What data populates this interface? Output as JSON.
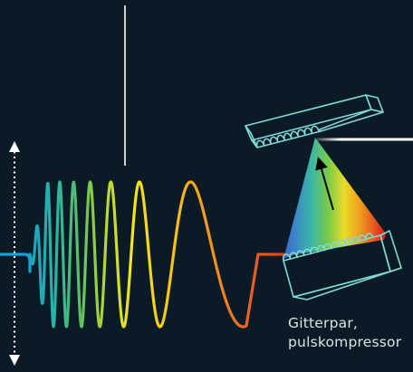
{
  "caption": {
    "line1": "Gitterpar,",
    "line2": "pulskompressor"
  },
  "colors": {
    "background": "#0b1b26",
    "grating_outline": "#7fd8d6",
    "arrow": "#ffffff",
    "chirp_start": "#1fa7c9",
    "chirp_end": "#e8302a"
  },
  "icons": {
    "vertical_extent": "double-headed-dotted-arrow",
    "incoming_beam": "blue-beam-line",
    "direction_arrow": "black-arrow"
  }
}
